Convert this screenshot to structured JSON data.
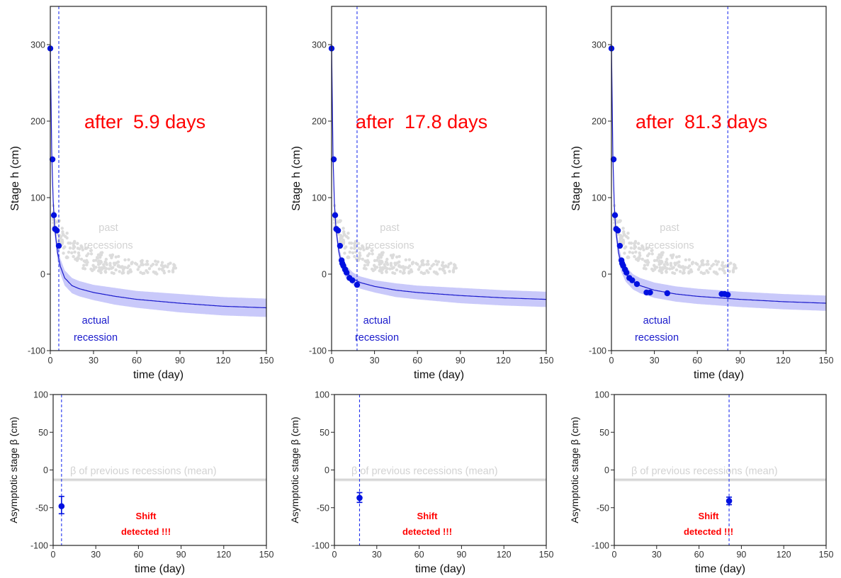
{
  "colors": {
    "obs": "#0010e0",
    "curve": "#1a1acc",
    "band": "#c9c9fa",
    "past": "#dcdcdc",
    "vline": "#2233ee",
    "headline": "#ff0000",
    "beta_band": "#cfcfcf",
    "beta_text": "#d2d2d2",
    "axis": "#222222"
  },
  "text": {
    "past_label_1": "past",
    "past_label_2": "recessions",
    "actual_label_1": "actual",
    "actual_label_2": "recession",
    "beta_prev_label": "β of previous recessions (mean)",
    "shift_label_1": "Shift",
    "shift_label_2": "detected !!!"
  },
  "chart_data": [
    {
      "type": "scatter",
      "panel": "top-left",
      "title": "after  5.9 days",
      "xlabel": "time (day)",
      "ylabel": "Stage h (cm)",
      "xlim": [
        0,
        150
      ],
      "ylim": [
        -100,
        350
      ],
      "xticks": [
        0,
        30,
        60,
        90,
        120,
        150
      ],
      "yticks": [
        -100,
        0,
        100,
        200,
        300
      ],
      "vline_x": 5.9,
      "observed": {
        "x": [
          0,
          1.5,
          2.5,
          3.3,
          4.5,
          5.9
        ],
        "y": [
          295,
          150,
          77,
          59,
          57,
          37
        ]
      },
      "fit_curve": {
        "x": [
          0,
          1,
          2,
          3,
          5,
          7,
          10,
          15,
          20,
          30,
          45,
          60,
          90,
          120,
          150
        ],
        "y": [
          300,
          160,
          95,
          62,
          28,
          10,
          -5,
          -15,
          -19,
          -24,
          -29,
          -33,
          -38,
          -42,
          -44
        ]
      },
      "band_halfwidth": [
        5,
        10,
        10,
        10,
        10,
        10,
        10,
        10,
        10,
        10,
        11,
        11,
        12,
        12,
        12
      ]
    },
    {
      "type": "scatter",
      "panel": "top-middle",
      "title": "after  17.8 days",
      "xlabel": "time (day)",
      "ylabel": "Stage h (cm)",
      "xlim": [
        0,
        150
      ],
      "ylim": [
        -100,
        350
      ],
      "xticks": [
        0,
        30,
        60,
        90,
        120,
        150
      ],
      "yticks": [
        -100,
        0,
        100,
        200,
        300
      ],
      "vline_x": 17.8,
      "observed": {
        "x": [
          0,
          1.5,
          2.5,
          3.3,
          4.5,
          5.9,
          7,
          7.5,
          8.2,
          9.5,
          10.5,
          12.5,
          14.5,
          17.8
        ],
        "y": [
          295,
          150,
          77,
          59,
          57,
          37,
          18,
          14,
          11,
          6,
          2,
          -5,
          -8,
          -14
        ]
      },
      "fit_curve": {
        "x": [
          0,
          1,
          2,
          3,
          5,
          7,
          10,
          15,
          20,
          30,
          45,
          60,
          90,
          120,
          150
        ],
        "y": [
          300,
          155,
          92,
          60,
          30,
          14,
          3,
          -6,
          -11,
          -16,
          -21,
          -24,
          -28,
          -31,
          -33
        ]
      },
      "band_halfwidth": [
        5,
        8,
        8,
        8,
        8,
        8,
        8,
        8,
        8,
        8,
        9,
        9,
        10,
        10,
        10
      ]
    },
    {
      "type": "scatter",
      "panel": "top-right",
      "title": "after  81.3 days",
      "xlabel": "time (day)",
      "ylabel": "Stage h (cm)",
      "xlim": [
        0,
        150
      ],
      "ylim": [
        -100,
        350
      ],
      "xticks": [
        0,
        30,
        60,
        90,
        120,
        150
      ],
      "yticks": [
        -100,
        0,
        100,
        200,
        300
      ],
      "vline_x": 81.3,
      "observed": {
        "x": [
          0,
          1.5,
          2.5,
          3.3,
          4.5,
          5.9,
          7,
          7.5,
          8.2,
          9.5,
          10.5,
          12.5,
          14.5,
          17.8,
          24.5,
          27,
          39,
          77,
          79,
          81.3
        ],
        "y": [
          295,
          150,
          77,
          59,
          57,
          37,
          18,
          14,
          11,
          6,
          2,
          -5,
          -8,
          -13,
          -24,
          -24,
          -25,
          -26,
          -26,
          -27
        ]
      },
      "fit_curve": {
        "x": [
          0,
          1,
          2,
          3,
          5,
          7,
          10,
          15,
          20,
          30,
          45,
          60,
          90,
          120,
          150
        ],
        "y": [
          300,
          155,
          90,
          58,
          28,
          12,
          0,
          -10,
          -15,
          -21,
          -26,
          -29,
          -33,
          -36,
          -38
        ]
      },
      "band_halfwidth": [
        5,
        10,
        10,
        10,
        10,
        10,
        10,
        10,
        10,
        10,
        10,
        10,
        10,
        10,
        10
      ]
    },
    {
      "type": "scatter",
      "panel": "bottom-left",
      "xlabel": "time (day)",
      "ylabel": "Asymptotic stage β (cm)",
      "xlim": [
        0,
        150
      ],
      "ylim": [
        -100,
        100
      ],
      "xticks": [
        0,
        30,
        60,
        90,
        120,
        150
      ],
      "yticks": [
        -100,
        -50,
        0,
        50,
        100
      ],
      "vline_x": 5.9,
      "beta_prev_mean": -13,
      "beta_prev_halfwidth": 2,
      "estimate": {
        "x": 5.9,
        "y": -48,
        "lower": -58,
        "upper": -35
      }
    },
    {
      "type": "scatter",
      "panel": "bottom-middle",
      "xlabel": "time (day)",
      "ylabel": "Asymptotic stage β (cm)",
      "xlim": [
        0,
        150
      ],
      "ylim": [
        -100,
        100
      ],
      "xticks": [
        0,
        30,
        60,
        90,
        120,
        150
      ],
      "yticks": [
        -100,
        -50,
        0,
        50,
        100
      ],
      "vline_x": 17.8,
      "beta_prev_mean": -13,
      "beta_prev_halfwidth": 2,
      "estimate": {
        "x": 17.8,
        "y": -37,
        "lower": -43,
        "upper": -30
      }
    },
    {
      "type": "scatter",
      "panel": "bottom-right",
      "xlabel": "time (day)",
      "ylabel": "Asymptotic stage β (cm)",
      "xlim": [
        0,
        150
      ],
      "ylim": [
        -100,
        100
      ],
      "xticks": [
        0,
        30,
        60,
        90,
        120,
        150
      ],
      "yticks": [
        -100,
        -50,
        0,
        50,
        100
      ],
      "vline_x": 81.3,
      "beta_prev_mean": -13,
      "beta_prev_halfwidth": 2,
      "estimate": {
        "x": 81.3,
        "y": -41,
        "lower": -46,
        "upper": -36
      }
    }
  ]
}
